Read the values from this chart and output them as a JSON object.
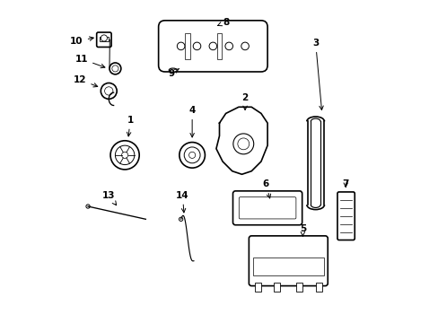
{
  "title": "",
  "background_color": "#ffffff",
  "line_color": "#000000",
  "line_width": 1.2,
  "figsize": [
    4.89,
    3.6
  ],
  "dpi": 100
}
